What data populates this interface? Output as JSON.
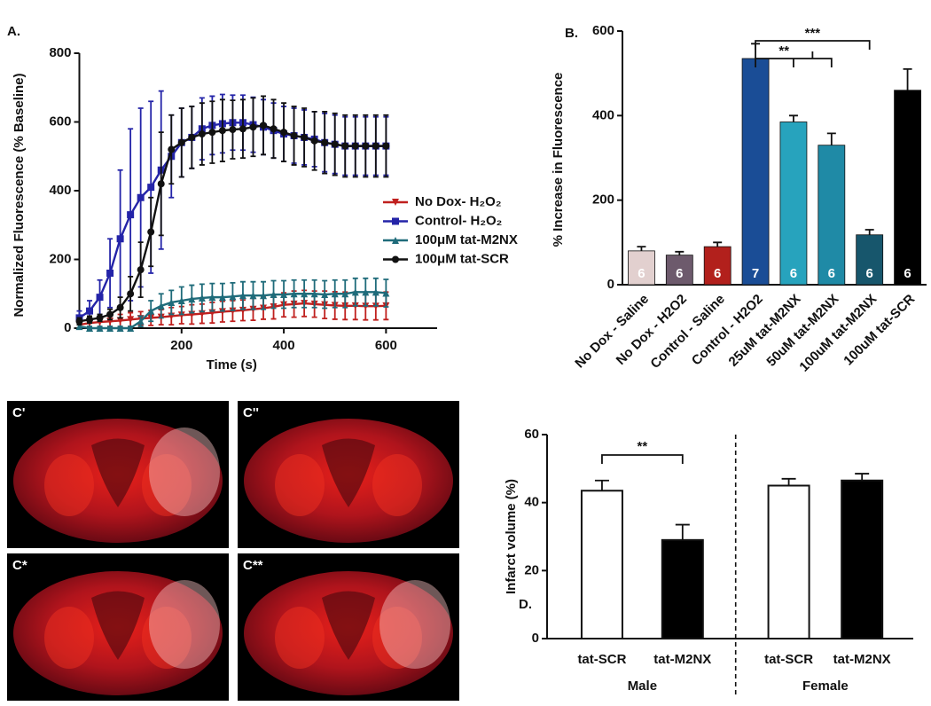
{
  "chart_data": [
    {
      "type": "line",
      "panel": "A.",
      "x_label": "Time (s)",
      "y_label": "Normalized Fluorescence (% Baseline)",
      "x": [
        0,
        20,
        40,
        60,
        80,
        100,
        120,
        140,
        160,
        180,
        200,
        220,
        240,
        260,
        280,
        300,
        320,
        340,
        360,
        380,
        400,
        420,
        440,
        460,
        480,
        500,
        520,
        540,
        560,
        580,
        600
      ],
      "xlim": [
        0,
        700
      ],
      "ylim": [
        0,
        800
      ],
      "xticks": [
        200,
        400,
        600
      ],
      "yticks": [
        0,
        200,
        400,
        600,
        800
      ],
      "legend": "right",
      "series": [
        {
          "name": "No Dox- H₂O₂",
          "color": "#c0201e",
          "marker": "triangle-down",
          "values": [
            10,
            15,
            18,
            20,
            22,
            25,
            28,
            30,
            32,
            35,
            38,
            40,
            42,
            45,
            48,
            50,
            52,
            55,
            58,
            62,
            68,
            70,
            72,
            70,
            68,
            66,
            65,
            65,
            64,
            64,
            65
          ],
          "errors": [
            10,
            12,
            15,
            15,
            18,
            20,
            20,
            22,
            22,
            25,
            25,
            28,
            28,
            30,
            30,
            30,
            30,
            32,
            32,
            35,
            35,
            38,
            38,
            38,
            40,
            40,
            40,
            40,
            40,
            40,
            40
          ]
        },
        {
          "name": "Control- H₂O₂",
          "color": "#2424a8",
          "marker": "square",
          "values": [
            30,
            50,
            90,
            160,
            260,
            330,
            380,
            410,
            460,
            500,
            540,
            555,
            580,
            590,
            595,
            598,
            598,
            592,
            585,
            575,
            565,
            560,
            555,
            550,
            540,
            535,
            530,
            530,
            530,
            530,
            530
          ],
          "errors": [
            20,
            30,
            50,
            100,
            200,
            250,
            260,
            250,
            230,
            120,
            100,
            90,
            90,
            85,
            85,
            80,
            80,
            80,
            80,
            80,
            80,
            80,
            80,
            80,
            85,
            85,
            85,
            85,
            85,
            85,
            85
          ]
        },
        {
          "name": "100μM tat-M2NX",
          "color": "#1f6b7a",
          "marker": "triangle-up",
          "values": [
            5,
            0,
            0,
            0,
            0,
            0,
            20,
            50,
            65,
            75,
            80,
            85,
            88,
            90,
            90,
            92,
            95,
            95,
            95,
            98,
            98,
            100,
            100,
            100,
            98,
            100,
            100,
            105,
            105,
            105,
            102
          ],
          "errors": [
            5,
            5,
            5,
            5,
            5,
            5,
            15,
            30,
            35,
            35,
            40,
            40,
            40,
            40,
            40,
            40,
            40,
            40,
            40,
            40,
            40,
            40,
            40,
            40,
            40,
            40,
            40,
            40,
            40,
            40,
            40
          ]
        },
        {
          "name": "100μM tat-SCR",
          "color": "#111111",
          "marker": "circle",
          "values": [
            20,
            25,
            30,
            40,
            60,
            100,
            170,
            280,
            420,
            520,
            540,
            555,
            565,
            570,
            575,
            578,
            580,
            585,
            590,
            580,
            570,
            560,
            555,
            545,
            540,
            535,
            530,
            530,
            530,
            530,
            530
          ],
          "errors": [
            10,
            10,
            10,
            15,
            30,
            50,
            80,
            100,
            150,
            100,
            100,
            90,
            90,
            90,
            90,
            85,
            85,
            85,
            85,
            85,
            85,
            85,
            85,
            85,
            90,
            90,
            90,
            90,
            90,
            90,
            90
          ]
        }
      ]
    },
    {
      "type": "bar",
      "panel": "B.",
      "y_label": "% Increase in Fluorescence",
      "categories": [
        "No Dox - Saline",
        "No Dox - H2O2",
        "Control - Saline",
        "Control - H2O2",
        "25uM tat-M2NX",
        "50uM tat-M2NX",
        "100uM tat-M2NX",
        "100uM tat-SCR"
      ],
      "values": [
        80,
        70,
        90,
        535,
        385,
        330,
        118,
        460
      ],
      "errors": [
        10,
        8,
        10,
        35,
        15,
        28,
        12,
        50
      ],
      "colors": [
        "#e2d0cf",
        "#6d5a6c",
        "#b2201c",
        "#1a4d96",
        "#27a3bd",
        "#1f8aa6",
        "#17566c",
        "#000000"
      ],
      "n": [
        "6",
        "6",
        "6",
        "7",
        "6",
        "6",
        "6",
        "6"
      ],
      "ylim": [
        0,
        600
      ],
      "yticks": [
        0,
        200,
        400,
        600
      ],
      "annotations": [
        "***",
        "**"
      ]
    },
    {
      "type": "bar",
      "panel": "D.",
      "y_label": "Infarct volume (%)",
      "categories": [
        "tat-SCR",
        "tat-M2NX",
        "tat-SCR",
        "tat-M2NX"
      ],
      "groups": [
        "Male",
        "Female"
      ],
      "values": [
        43.5,
        29,
        45,
        46.5
      ],
      "errors": [
        3,
        4.5,
        2,
        2
      ],
      "colors": [
        "#ffffff",
        "#000000",
        "#ffffff",
        "#000000"
      ],
      "ylim": [
        0,
        60
      ],
      "yticks": [
        0,
        20,
        40,
        60
      ],
      "annotations": [
        "**"
      ]
    }
  ],
  "panel_c": {
    "labels": [
      "C'",
      "C''",
      "C*",
      "C**"
    ]
  }
}
